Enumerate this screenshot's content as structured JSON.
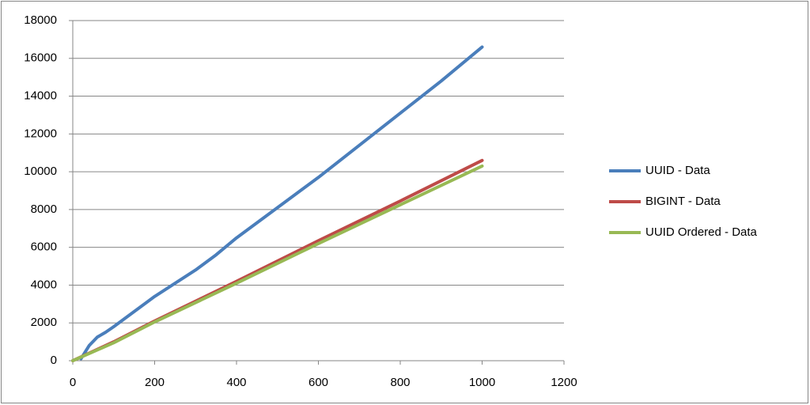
{
  "chart_data": {
    "type": "line",
    "xlim": [
      0,
      1200
    ],
    "xticks": [
      0,
      200,
      400,
      600,
      800,
      1000,
      1200
    ],
    "ylim": [
      0,
      18000
    ],
    "yticks": [
      0,
      2000,
      4000,
      6000,
      8000,
      10000,
      12000,
      14000,
      16000,
      18000
    ],
    "grid": true,
    "legend": "right",
    "series": [
      {
        "name": "UUID - Data",
        "color": "#4a7ebb",
        "x": [
          20,
          40,
          60,
          80,
          100,
          150,
          200,
          250,
          300,
          350,
          400,
          500,
          600,
          700,
          800,
          900,
          1000
        ],
        "values": [
          100,
          800,
          1250,
          1500,
          1800,
          2600,
          3400,
          4100,
          4800,
          5600,
          6500,
          8100,
          9700,
          11400,
          13100,
          14800,
          16600
        ]
      },
      {
        "name": "BIGINT - Data",
        "color": "#be4b48",
        "x": [
          0,
          50,
          100,
          200,
          400,
          600,
          800,
          1000
        ],
        "values": [
          0,
          500,
          1000,
          2100,
          4200,
          6350,
          8450,
          10600
        ]
      },
      {
        "name": "UUID Ordered - Data",
        "color": "#98b954",
        "x": [
          0,
          100,
          200,
          400,
          600,
          800,
          1000
        ],
        "values": [
          0,
          950,
          2050,
          4100,
          6200,
          8250,
          10300
        ]
      }
    ]
  }
}
